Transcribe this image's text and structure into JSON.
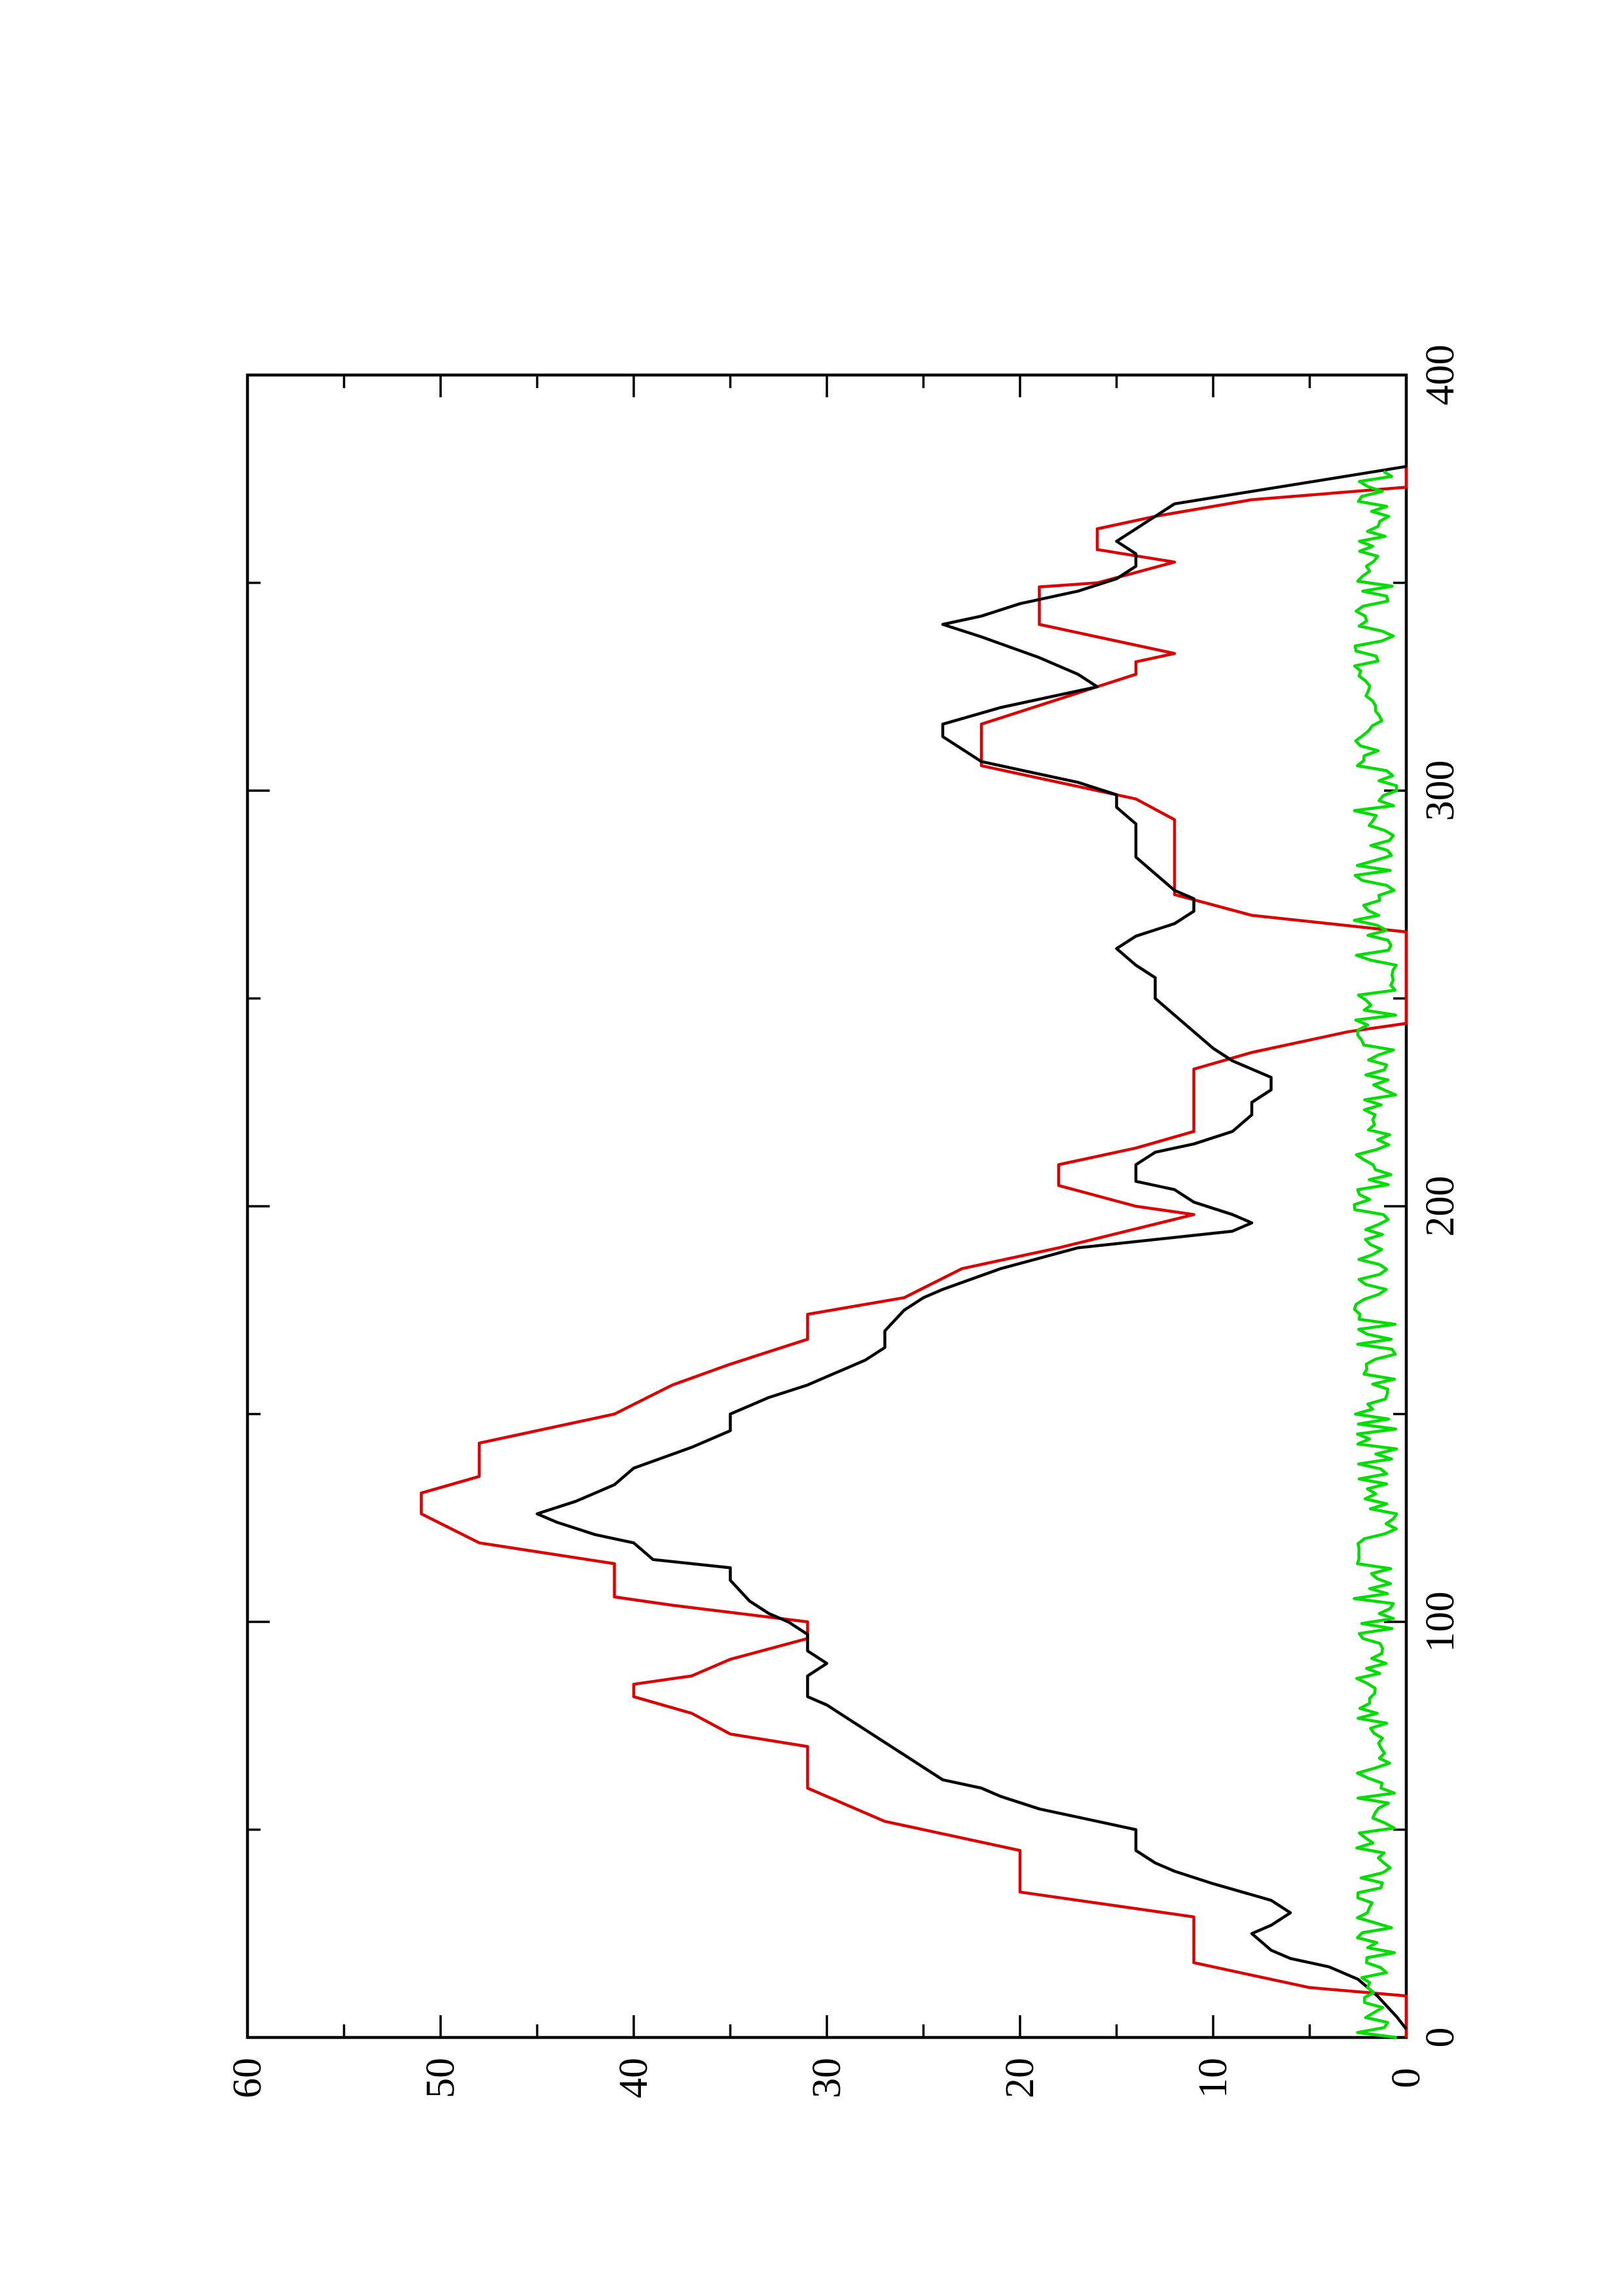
{
  "chart_data": {
    "type": "line",
    "orientation": "rotated 90 degrees counter-clockwise",
    "title": "",
    "xlabel": "",
    "ylabel": "",
    "xlim": [
      0,
      400
    ],
    "ylim": [
      0,
      60
    ],
    "x_ticks": [
      0,
      100,
      200,
      300,
      400
    ],
    "x_tick_labels": [
      "0",
      "100",
      "200",
      "300",
      "400"
    ],
    "x_minor_ticks": [
      50,
      150,
      250,
      350
    ],
    "y_ticks": [
      0,
      10,
      20,
      30,
      40,
      50,
      60
    ],
    "y_tick_labels": [
      "0",
      "10",
      "20",
      "30",
      "40",
      "50",
      "60"
    ],
    "y_minor_ticks": [
      5,
      15,
      25,
      35,
      45,
      55
    ],
    "grid": false,
    "legend": "none",
    "series": [
      {
        "color": "#dd0000",
        "style": "step",
        "points": [
          [
            0,
            0
          ],
          [
            10,
            0
          ],
          [
            12,
            5
          ],
          [
            15,
            8
          ],
          [
            18,
            11
          ],
          [
            29,
            11
          ],
          [
            35,
            20
          ],
          [
            45,
            20
          ],
          [
            52,
            27
          ],
          [
            60,
            31
          ],
          [
            70,
            31
          ],
          [
            73,
            35
          ],
          [
            78,
            37
          ],
          [
            82,
            40
          ],
          [
            85,
            40
          ],
          [
            87,
            37
          ],
          [
            91,
            35
          ],
          [
            96,
            31
          ],
          [
            100,
            31
          ],
          [
            104,
            38
          ],
          [
            106,
            41
          ],
          [
            114,
            41
          ],
          [
            119,
            48
          ],
          [
            126,
            51
          ],
          [
            131,
            51
          ],
          [
            135,
            48
          ],
          [
            143,
            48
          ],
          [
            150,
            41
          ],
          [
            157,
            38
          ],
          [
            162,
            35
          ],
          [
            168,
            31
          ],
          [
            174,
            31
          ],
          [
            178,
            26
          ],
          [
            185,
            23
          ],
          [
            190,
            18
          ],
          [
            198,
            11
          ],
          [
            200,
            14
          ],
          [
            205,
            18
          ],
          [
            210,
            18
          ],
          [
            214,
            14
          ],
          [
            218,
            11
          ],
          [
            233,
            11
          ],
          [
            237,
            8
          ],
          [
            242,
            3
          ],
          [
            244,
            0
          ],
          [
            266,
            0
          ],
          [
            270,
            8
          ],
          [
            275,
            12
          ],
          [
            293,
            12
          ],
          [
            298,
            14
          ],
          [
            306,
            22
          ],
          [
            316,
            22
          ],
          [
            328,
            14
          ],
          [
            331,
            14
          ],
          [
            333,
            12
          ],
          [
            340,
            19
          ],
          [
            349,
            19
          ],
          [
            350,
            16
          ],
          [
            355,
            12
          ],
          [
            358,
            16
          ],
          [
            363,
            16
          ],
          [
            366,
            13
          ],
          [
            370,
            8
          ],
          [
            373,
            0
          ],
          [
            378,
            0
          ]
        ]
      },
      {
        "color": "#000000",
        "style": "line",
        "points": [
          [
            2,
            0
          ],
          [
            5,
            0.5
          ],
          [
            10,
            1.5
          ],
          [
            14,
            2.5
          ],
          [
            17,
            4
          ],
          [
            19,
            6
          ],
          [
            21,
            7
          ],
          [
            23,
            7.5
          ],
          [
            25,
            8
          ],
          [
            27,
            7
          ],
          [
            30,
            6
          ],
          [
            33,
            7
          ],
          [
            37,
            10
          ],
          [
            40,
            12
          ],
          [
            42,
            13
          ],
          [
            45,
            14
          ],
          [
            50,
            14
          ],
          [
            53,
            17
          ],
          [
            55,
            19
          ],
          [
            58,
            21
          ],
          [
            60,
            22
          ],
          [
            62,
            24
          ],
          [
            65,
            25
          ],
          [
            68,
            26
          ],
          [
            71,
            27
          ],
          [
            74,
            28
          ],
          [
            77,
            29
          ],
          [
            80,
            30
          ],
          [
            82,
            31
          ],
          [
            84,
            31
          ],
          [
            87,
            31
          ],
          [
            90,
            30
          ],
          [
            93,
            31
          ],
          [
            97,
            31
          ],
          [
            100,
            32
          ],
          [
            102,
            33
          ],
          [
            105,
            34
          ],
          [
            110,
            35
          ],
          [
            113,
            35
          ],
          [
            115,
            39
          ],
          [
            119,
            40
          ],
          [
            121,
            42
          ],
          [
            124,
            44
          ],
          [
            126,
            45
          ],
          [
            129,
            43
          ],
          [
            131,
            42
          ],
          [
            133,
            41
          ],
          [
            137,
            40
          ],
          [
            142,
            37
          ],
          [
            146,
            35
          ],
          [
            150,
            35
          ],
          [
            154,
            33
          ],
          [
            157,
            31
          ],
          [
            159,
            30
          ],
          [
            161,
            29
          ],
          [
            163,
            28
          ],
          [
            166,
            27
          ],
          [
            170,
            27
          ],
          [
            175,
            26
          ],
          [
            178,
            25
          ],
          [
            180,
            24
          ],
          [
            185,
            21
          ],
          [
            190,
            17
          ],
          [
            194,
            9
          ],
          [
            196,
            8
          ],
          [
            198,
            9
          ],
          [
            201,
            11
          ],
          [
            204,
            12
          ],
          [
            206,
            14
          ],
          [
            210,
            14
          ],
          [
            213,
            13
          ],
          [
            215,
            11
          ],
          [
            218,
            9
          ],
          [
            222,
            8
          ],
          [
            225,
            8
          ],
          [
            228,
            7
          ],
          [
            231,
            7
          ],
          [
            235,
            9
          ],
          [
            238,
            10
          ],
          [
            242,
            11
          ],
          [
            246,
            12
          ],
          [
            250,
            13
          ],
          [
            255,
            13
          ],
          [
            258,
            14
          ],
          [
            262,
            15
          ],
          [
            265,
            14
          ],
          [
            268,
            12
          ],
          [
            271,
            11
          ],
          [
            274,
            11
          ],
          [
            276,
            12
          ],
          [
            280,
            13
          ],
          [
            284,
            14
          ],
          [
            288,
            14
          ],
          [
            292,
            14
          ],
          [
            296,
            15
          ],
          [
            299,
            15
          ],
          [
            302,
            17
          ],
          [
            305,
            20
          ],
          [
            307,
            22
          ],
          [
            310,
            23
          ],
          [
            313,
            24
          ],
          [
            316,
            24
          ],
          [
            320,
            21
          ],
          [
            323,
            18
          ],
          [
            325,
            16
          ],
          [
            328,
            17
          ],
          [
            332,
            19
          ],
          [
            337,
            22
          ],
          [
            340,
            24
          ],
          [
            342,
            22
          ],
          [
            345,
            20
          ],
          [
            348,
            17
          ],
          [
            351,
            15
          ],
          [
            354,
            14
          ],
          [
            357,
            14
          ],
          [
            360,
            15
          ],
          [
            363,
            14
          ],
          [
            366,
            13
          ],
          [
            369,
            12
          ],
          [
            372,
            8
          ],
          [
            375,
            4
          ],
          [
            378,
            0
          ]
        ]
      },
      {
        "color": "#00dd00",
        "style": "line",
        "noise_seed": 7,
        "x_range": [
          0,
          377
        ],
        "y_mean": 1.6,
        "y_amplitude": 1.1
      }
    ]
  }
}
